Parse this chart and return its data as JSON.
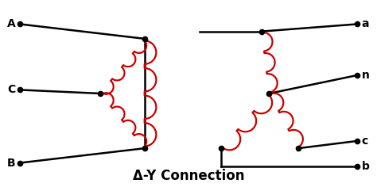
{
  "title": "Δ-Y Connection",
  "title_fontsize": 12,
  "bg_color": "#ffffff",
  "line_color": "#000000",
  "coil_color": "#cc0000",
  "lw": 1.8,
  "dot_size": 4.5,
  "coil_lw": 1.6,
  "label_fontsize": 10,
  "fig_width": 4.74,
  "fig_height": 2.36,
  "dpi": 100,
  "xlim": [
    0,
    10
  ],
  "ylim": [
    0,
    5
  ]
}
